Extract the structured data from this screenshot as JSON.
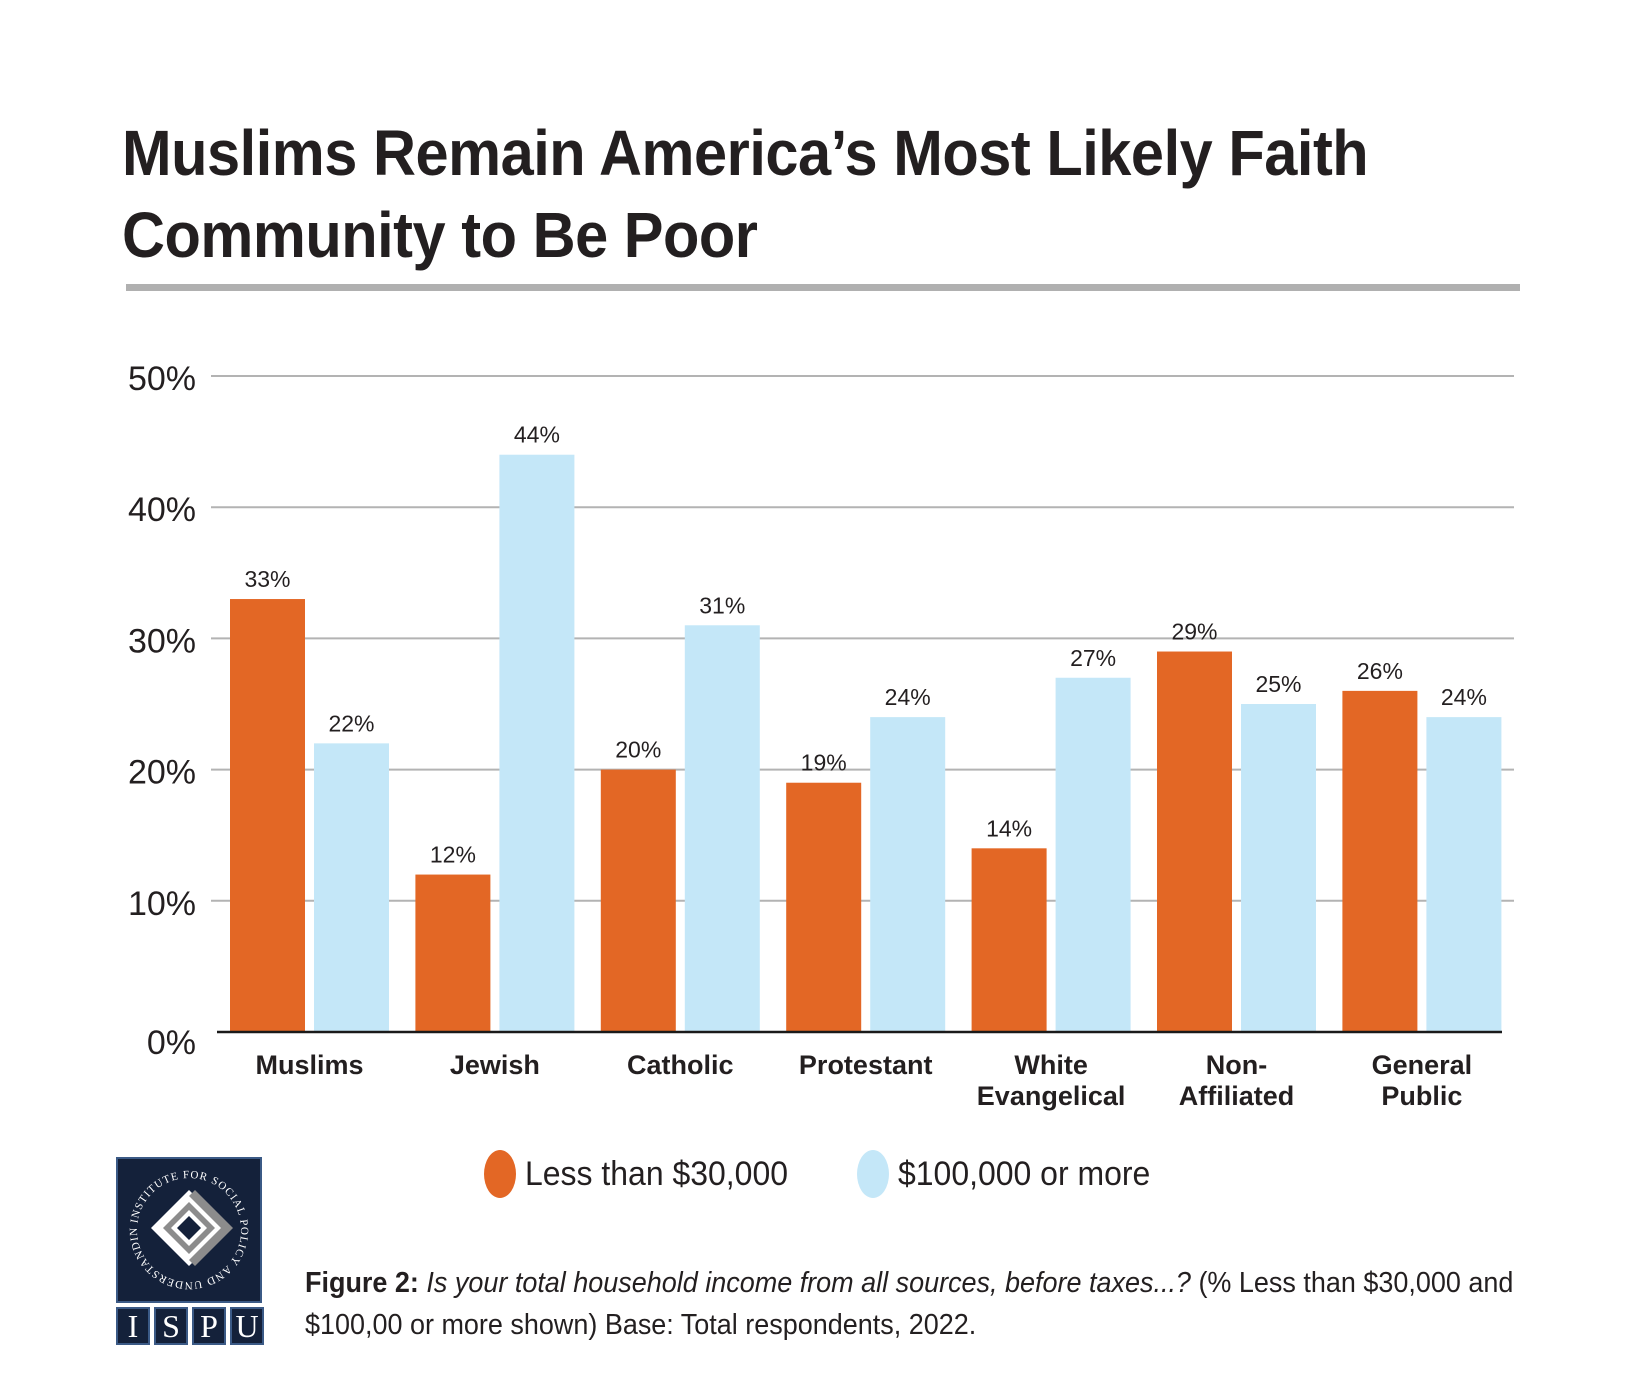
{
  "header": {
    "title": "Muslims Remain America’s Most Likely Faith Community to Be Poor"
  },
  "chart_data": {
    "type": "bar",
    "title": "Muslims Remain America’s Most Likely Faith Community to Be Poor",
    "xlabel": "",
    "ylabel": "",
    "ylim": [
      0,
      50
    ],
    "yticks": [
      0,
      10,
      20,
      30,
      40,
      50
    ],
    "ytick_labels": [
      "0%",
      "10%",
      "20%",
      "30%",
      "40%",
      "50%"
    ],
    "grid": true,
    "legend_position": "bottom",
    "categories": [
      "Muslims",
      "Jewish",
      "Catholic",
      "Protestant",
      "White Evangelical",
      "Non-Affiliated",
      "General Public"
    ],
    "category_lines": [
      [
        "Muslims"
      ],
      [
        "Jewish"
      ],
      [
        "Catholic"
      ],
      [
        "Protestant"
      ],
      [
        "White",
        "Evangelical"
      ],
      [
        "Non-",
        "Affiliated"
      ],
      [
        "General",
        "Public"
      ]
    ],
    "series": [
      {
        "name": "Less than $30,000",
        "color": "#e36725",
        "values": [
          33,
          12,
          20,
          19,
          14,
          29,
          26
        ],
        "labels": [
          "33%",
          "12%",
          "20%",
          "19%",
          "14%",
          "29%",
          "26%"
        ]
      },
      {
        "name": "$100,000 or more",
        "color": "#c4e7f8",
        "values": [
          22,
          44,
          31,
          24,
          27,
          25,
          24
        ],
        "labels": [
          "22%",
          "44%",
          "31%",
          "24%",
          "27%",
          "25%",
          "24%"
        ]
      }
    ]
  },
  "legend": {
    "items": [
      {
        "label": "Less than $30,000",
        "color": "#e36725"
      },
      {
        "label": "$100,000 or more",
        "color": "#c4e7f8"
      }
    ]
  },
  "logo": {
    "ring_text": "INSTITUTE FOR SOCIAL POLICY AND UNDERSTANDING",
    "letters": [
      "I",
      "S",
      "P",
      "U"
    ]
  },
  "caption": {
    "figure_label": "Figure 2:",
    "question": "Is your total household income from all sources, before taxes...?",
    "note": "(% Less than $30,000 and $100,00 or more shown) Base: Total respondents, 2022."
  },
  "colors": {
    "accent_low_income": "#e36725",
    "accent_high_income": "#c4e7f8",
    "rule": "#b0b0b0",
    "logo_navy": "#14213a"
  }
}
